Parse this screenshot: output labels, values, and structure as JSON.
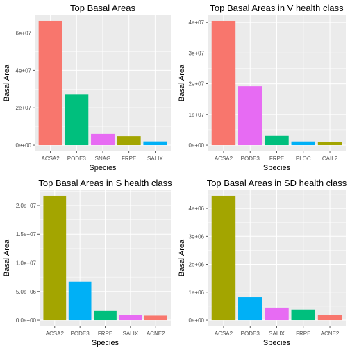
{
  "chart_data": [
    {
      "type": "bar",
      "title": "Top Basal Areas",
      "xlabel": "Species",
      "ylabel": "Basal Area",
      "categories": [
        "ACSA2",
        "PODE3",
        "SNAG",
        "FRPE",
        "SALIX"
      ],
      "values": [
        66500000,
        27000000,
        6000000,
        4800000,
        2000000
      ],
      "colors": [
        "#f8766d",
        "#00bf7d",
        "#e76bf3",
        "#a3a500",
        "#00b0f6"
      ],
      "ylim": [
        -3325000,
        69825000
      ],
      "yticks": [
        0,
        20000000,
        40000000,
        60000000
      ],
      "ytick_labels": [
        "0e+00",
        "2e+07",
        "4e+07",
        "6e+07"
      ],
      "grid": true,
      "background": "#ebebeb",
      "legend": "none"
    },
    {
      "type": "bar",
      "title": "Top Basal Areas in V health class",
      "xlabel": "Species",
      "ylabel": "Basal Area",
      "categories": [
        "ACSA2",
        "PODE3",
        "FRPE",
        "PLOC",
        "CAIL2"
      ],
      "values": [
        40500000,
        19200000,
        3000000,
        1200000,
        1000000
      ],
      "colors": [
        "#f8766d",
        "#e76bf3",
        "#00bf7d",
        "#00b0f6",
        "#a3a500"
      ],
      "ylim": [
        -2025000,
        42525000
      ],
      "yticks": [
        0,
        10000000,
        20000000,
        30000000,
        40000000
      ],
      "ytick_labels": [
        "0e+00",
        "1e+07",
        "2e+07",
        "3e+07",
        "4e+07"
      ],
      "grid": true,
      "background": "#ebebeb",
      "legend": "none"
    },
    {
      "type": "bar",
      "title": "Top Basal Areas in S health class",
      "xlabel": "Species",
      "ylabel": "Basal Area",
      "categories": [
        "ACSA2",
        "PODE3",
        "FRPE",
        "SALIX",
        "ACNE2"
      ],
      "values": [
        21700000,
        6700000,
        1600000,
        900000,
        800000
      ],
      "colors": [
        "#a3a500",
        "#00b0f6",
        "#00bf7d",
        "#e76bf3",
        "#f8766d"
      ],
      "ylim": [
        -1085000,
        22785000
      ],
      "yticks": [
        0,
        5000000,
        10000000,
        15000000,
        20000000
      ],
      "ytick_labels": [
        "0.0e+00",
        "5.0e+06",
        "1.0e+07",
        "1.5e+07",
        "2.0e+07"
      ],
      "grid": true,
      "background": "#ebebeb",
      "legend": "none"
    },
    {
      "type": "bar",
      "title": "Top Basal Areas in SD health class",
      "xlabel": "Species",
      "ylabel": "Basal Area",
      "categories": [
        "ACSA2",
        "PODE3",
        "SALIX",
        "FRPE",
        "ACNE2"
      ],
      "values": [
        4450000,
        820000,
        450000,
        380000,
        200000
      ],
      "colors": [
        "#a3a500",
        "#00b0f6",
        "#e76bf3",
        "#00bf7d",
        "#f8766d"
      ],
      "ylim": [
        -222500,
        4672500
      ],
      "yticks": [
        0,
        1000000,
        2000000,
        3000000,
        4000000
      ],
      "ytick_labels": [
        "0e+00",
        "1e+06",
        "2e+06",
        "3e+06",
        "4e+06"
      ],
      "grid": true,
      "background": "#ebebeb",
      "legend": "none"
    }
  ]
}
